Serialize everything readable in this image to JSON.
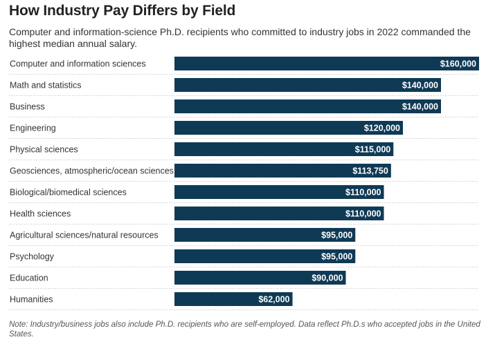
{
  "chart_data": {
    "type": "bar",
    "orientation": "horizontal",
    "title": "How Industry Pay Differs by Field",
    "subtitle": "Computer and information-science Ph.D. recipients who committed to industry jobs in 2022 commanded the highest median annual salary.",
    "note": "Note: Industry/business jobs also include Ph.D. recipients who are self-employed. Data reflect Ph.D.s who accepted jobs in the United States.",
    "categories": [
      "Computer and information sciences",
      "Math and statistics",
      "Business",
      "Engineering",
      "Physical sciences",
      "Geosciences, atmospheric/ocean sciences",
      "Biological/biomedical sciences",
      "Health sciences",
      "Agricultural sciences/natural resources",
      "Psychology",
      "Education",
      "Humanities"
    ],
    "values": [
      160000,
      140000,
      140000,
      120000,
      115000,
      113750,
      110000,
      110000,
      95000,
      95000,
      90000,
      62000
    ],
    "data_labels": [
      "$160,000",
      "$140,000",
      "$140,000",
      "$120,000",
      "$115,000",
      "$113,750",
      "$110,000",
      "$110,000",
      "$95,000",
      "$95,000",
      "$90,000",
      "$62,000"
    ],
    "xlim": [
      0,
      160000
    ],
    "bar_color": "#0f3a55",
    "label_color": "#ffffff",
    "grid": false,
    "row_separators": "dotted"
  }
}
